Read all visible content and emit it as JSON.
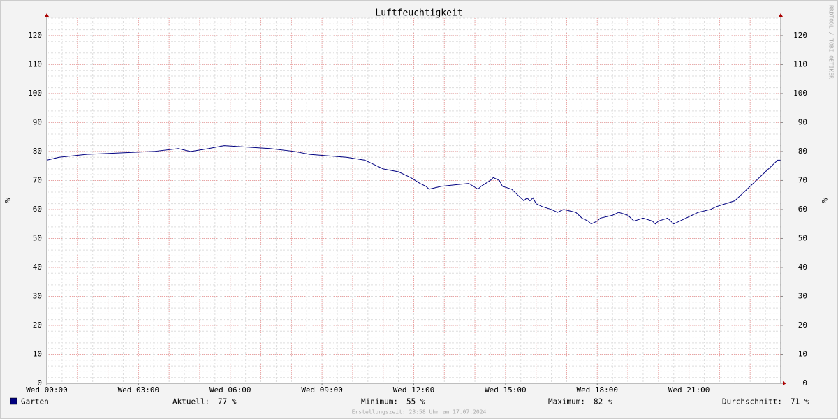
{
  "chart_data": {
    "type": "line",
    "title": "Luftfeuchtigkeit",
    "y_label": "%",
    "y2_label": "%",
    "xlim": [
      0,
      24
    ],
    "xticks": [
      {
        "value": 0,
        "label": "Wed 00:00"
      },
      {
        "value": 3,
        "label": "Wed 03:00"
      },
      {
        "value": 6,
        "label": "Wed 06:00"
      },
      {
        "value": 9,
        "label": "Wed 09:00"
      },
      {
        "value": 12,
        "label": "Wed 12:00"
      },
      {
        "value": 15,
        "label": "Wed 15:00"
      },
      {
        "value": 18,
        "label": "Wed 18:00"
      },
      {
        "value": 21,
        "label": "Wed 21:00"
      }
    ],
    "ylim": [
      0,
      126
    ],
    "yticks": [
      0,
      10,
      20,
      30,
      40,
      50,
      60,
      70,
      80,
      90,
      100,
      110,
      120
    ],
    "y2lim": [
      0,
      126
    ],
    "y2ticks": [
      0,
      10,
      20,
      30,
      40,
      50,
      60,
      70,
      80,
      90,
      100,
      110,
      120
    ],
    "grid": true,
    "x_grid_step": 1,
    "x_minor_step": 0.5,
    "y_minor_step": 2,
    "series": [
      {
        "name": "Garten",
        "color": "#000080",
        "x": [
          0,
          0.4,
          1.3,
          3.5,
          4.3,
          4.7,
          5.3,
          5.8,
          7.3,
          8.1,
          8.6,
          9.8,
          10.4,
          10.6,
          10.8,
          11.0,
          11.5,
          11.7,
          11.9,
          12.2,
          12.4,
          12.5,
          12.9,
          13.8,
          13.95,
          14.1,
          14.2,
          14.5,
          14.6,
          14.8,
          14.9,
          15.2,
          15.4,
          15.6,
          15.7,
          15.8,
          15.9,
          16.0,
          16.2,
          16.5,
          16.7,
          16.9,
          17.3,
          17.5,
          17.7,
          17.8,
          18.0,
          18.1,
          18.5,
          18.7,
          19.0,
          19.2,
          19.5,
          19.8,
          19.9,
          20.0,
          20.3,
          20.5,
          20.7,
          20.9,
          21.1,
          21.3,
          21.7,
          21.9,
          22.2,
          22.5,
          22.6,
          22.7,
          22.8,
          22.9,
          23.0,
          23.1,
          23.2,
          23.3,
          23.4,
          23.5,
          23.6,
          23.7,
          23.8,
          23.9,
          24
        ],
        "values": [
          77,
          78,
          79,
          80,
          81,
          80,
          81,
          82,
          81,
          80,
          79,
          78,
          77,
          76,
          75,
          74,
          73,
          72,
          71,
          69,
          68,
          67,
          68,
          69,
          68,
          67,
          68,
          70,
          71,
          70,
          68,
          67,
          65,
          63,
          64,
          63,
          64,
          62,
          61,
          60,
          59,
          60,
          59,
          57,
          56,
          55,
          56,
          57,
          58,
          59,
          58,
          56,
          57,
          56,
          55,
          56,
          57,
          55,
          56,
          57,
          58,
          59,
          60,
          61,
          62,
          63,
          64,
          65,
          66,
          67,
          68,
          69,
          70,
          71,
          72,
          73,
          74,
          75,
          76,
          77,
          77
        ]
      }
    ],
    "stats": [
      {
        "label": "Aktuell:",
        "text": "77 %"
      },
      {
        "label": "Minimum:",
        "text": "55 %"
      },
      {
        "label": "Maximum:",
        "text": "82 %"
      },
      {
        "label": "Durchschnitt:",
        "text": "71 %"
      }
    ],
    "footer": "Erstellungszeit: 23:58 Uhr am 17.07.2024",
    "watermark": "RRDTOOL / TOBI OETIKER"
  }
}
